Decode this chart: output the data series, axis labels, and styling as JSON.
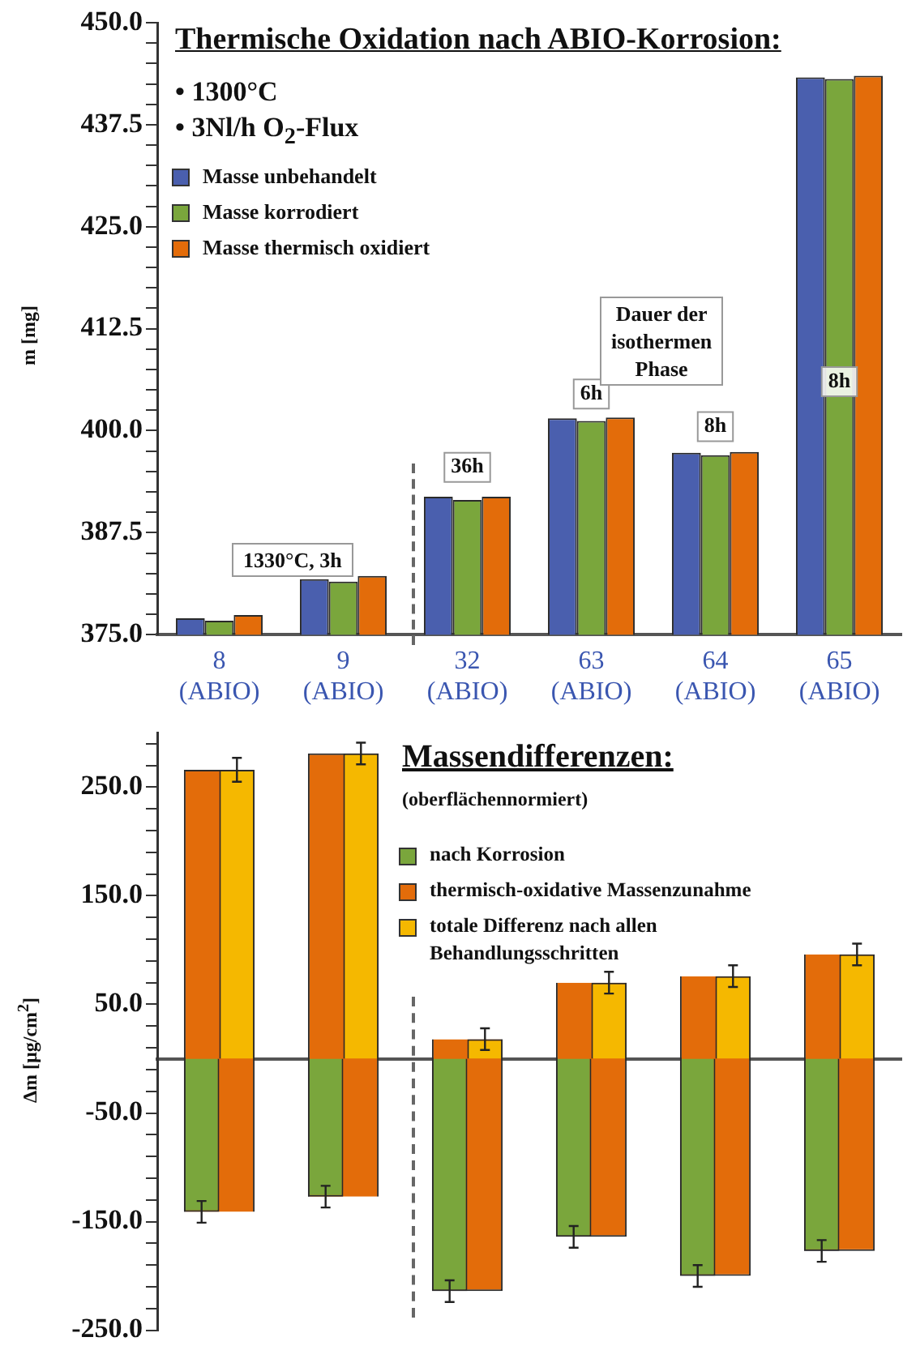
{
  "chart_data": [
    {
      "type": "bar",
      "title": "Thermische Oxidation nach ABIO-Korrosion:",
      "ylabel": "m [mg]",
      "categories": [
        "8\n(ABIO)",
        "9\n(ABIO)",
        "32\n(ABIO)",
        "63\n(ABIO)",
        "64\n(ABIO)",
        "65\n(ABIO)"
      ],
      "series": [
        {
          "name": "Masse unbehandelt",
          "color": "#4a5fae",
          "values": [
            377.0,
            381.8,
            391.9,
            401.5,
            397.3,
            443.3
          ]
        },
        {
          "name": "Masse korrodiert",
          "color": "#7aa63c",
          "values": [
            376.7,
            381.5,
            391.5,
            401.2,
            397.0,
            443.1
          ]
        },
        {
          "name": "Masse thermisch oxidiert",
          "color": "#e36c0a",
          "values": [
            377.4,
            382.2,
            391.9,
            401.6,
            397.4,
            443.5
          ]
        }
      ],
      "ylim": [
        375,
        450
      ],
      "yticks": [
        {
          "value": 375,
          "label": "375.0"
        },
        {
          "value": 377.5,
          "label": null
        },
        {
          "value": 380,
          "label": null
        },
        {
          "value": 382.5,
          "label": null
        },
        {
          "value": 385,
          "label": null
        },
        {
          "value": 387.5,
          "label": "387.5"
        },
        {
          "value": 390,
          "label": null
        },
        {
          "value": 392.5,
          "label": null
        },
        {
          "value": 395,
          "label": null
        },
        {
          "value": 397.5,
          "label": null
        },
        {
          "value": 400,
          "label": "400.0"
        },
        {
          "value": 402.5,
          "label": null
        },
        {
          "value": 405,
          "label": null
        },
        {
          "value": 407.5,
          "label": null
        },
        {
          "value": 410,
          "label": null
        },
        {
          "value": 412.5,
          "label": "412.5"
        },
        {
          "value": 415,
          "label": null
        },
        {
          "value": 417.5,
          "label": null
        },
        {
          "value": 420,
          "label": null
        },
        {
          "value": 422.5,
          "label": null
        },
        {
          "value": 425,
          "label": "425.0"
        },
        {
          "value": 427.5,
          "label": null
        },
        {
          "value": 430,
          "label": null
        },
        {
          "value": 432.5,
          "label": null
        },
        {
          "value": 435,
          "label": null
        },
        {
          "value": 437.5,
          "label": "437.5"
        },
        {
          "value": 440,
          "label": null
        },
        {
          "value": 442.5,
          "label": null
        },
        {
          "value": 445,
          "label": null
        },
        {
          "value": 447.5,
          "label": null
        },
        {
          "value": 450,
          "label": "450.0"
        }
      ],
      "grid": false,
      "legend": "top left",
      "annotations": [
        "• 1300°C",
        "• 3Nl/h O$_{2}$-Flux",
        "Dauer der\nisothermen\nPhase",
        "1330°C, 3h",
        {
          "text": "36h",
          "x": "32\n(ABIO)",
          "y": 395.5
        },
        {
          "text": "6h",
          "x": "63\n(ABIO)",
          "y": 404.5
        },
        {
          "text": "8h",
          "x": "64\n(ABIO)",
          "y": 400.5
        },
        {
          "text": "8h",
          "x": "65\n(ABIO)",
          "y": 406
        }
      ]
    },
    {
      "type": "bar",
      "title": "Massendifferenzen:",
      "subtitle": "(oberflächennormiert)",
      "ylabel": "Δm [µg/cm$^{2}$]",
      "categories": [
        null,
        null,
        null,
        null,
        null,
        null
      ],
      "series": [
        {
          "name": "nach Korrosion",
          "color": "#7aa63c",
          "values": [
            -141,
            -127,
            -214,
            -164,
            -200,
            -177
          ],
          "errors": [
            10,
            10,
            10,
            10,
            10,
            10
          ]
        },
        {
          "name": "thermisch-oxidative Massenzunahme",
          "color": "#e36c0a",
          "base": [
            -141,
            -127,
            -214,
            -164,
            -200,
            -177
          ],
          "values": [
            407,
            408,
            232,
            234,
            276,
            273
          ]
        },
        {
          "name": "totale Differenz nach allen Behandlungsschritten",
          "color": "#f5b800",
          "values": [
            266,
            281,
            18,
            70,
            76,
            96
          ],
          "errors": [
            11,
            10,
            10,
            10,
            10,
            10
          ]
        }
      ],
      "ylim": [
        -250,
        300
      ],
      "yticks": [
        {
          "value": -250,
          "label": "-250.0"
        },
        {
          "value": -230,
          "label": null
        },
        {
          "value": -210,
          "label": null
        },
        {
          "value": -190,
          "label": null
        },
        {
          "value": -170,
          "label": null
        },
        {
          "value": -150,
          "label": "-150.0"
        },
        {
          "value": -130,
          "label": null
        },
        {
          "value": -110,
          "label": null
        },
        {
          "value": -90,
          "label": null
        },
        {
          "value": -70,
          "label": null
        },
        {
          "value": -50,
          "label": "-50.0"
        },
        {
          "value": -30,
          "label": null
        },
        {
          "value": -10,
          "label": null
        },
        {
          "value": 10,
          "label": null
        },
        {
          "value": 30,
          "label": null
        },
        {
          "value": 50,
          "label": "50.0"
        },
        {
          "value": 70,
          "label": null
        },
        {
          "value": 90,
          "label": null
        },
        {
          "value": 110,
          "label": null
        },
        {
          "value": 130,
          "label": null
        },
        {
          "value": 150,
          "label": "150.0"
        },
        {
          "value": 170,
          "label": null
        },
        {
          "value": 190,
          "label": null
        },
        {
          "value": 210,
          "label": null
        },
        {
          "value": 230,
          "label": null
        },
        {
          "value": 250,
          "label": "250.0"
        },
        {
          "value": 270,
          "label": null
        },
        {
          "value": 290,
          "label": null
        }
      ],
      "grid": false,
      "legend": "top right",
      "tick_labels": "y"
    }
  ]
}
